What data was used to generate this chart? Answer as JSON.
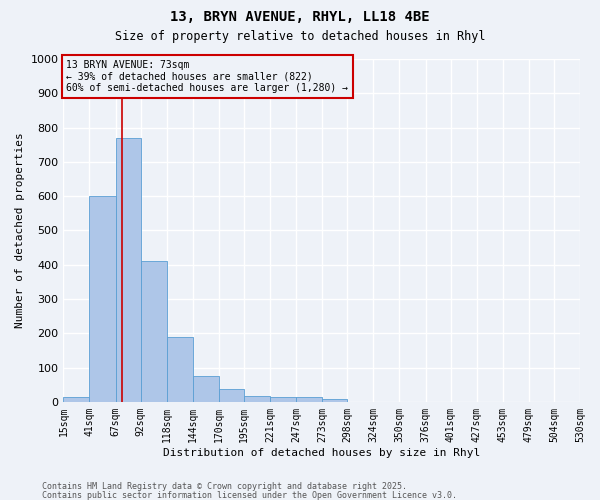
{
  "title1": "13, BRYN AVENUE, RHYL, LL18 4BE",
  "title2": "Size of property relative to detached houses in Rhyl",
  "xlabel": "Distribution of detached houses by size in Rhyl",
  "ylabel": "Number of detached properties",
  "bin_labels": [
    "15sqm",
    "41sqm",
    "67sqm",
    "92sqm",
    "118sqm",
    "144sqm",
    "170sqm",
    "195sqm",
    "221sqm",
    "247sqm",
    "273sqm",
    "298sqm",
    "324sqm",
    "350sqm",
    "376sqm",
    "401sqm",
    "427sqm",
    "453sqm",
    "479sqm",
    "504sqm",
    "530sqm"
  ],
  "bar_heights": [
    15,
    600,
    770,
    410,
    190,
    75,
    37,
    18,
    13,
    13,
    7,
    0,
    0,
    0,
    0,
    0,
    0,
    0,
    0,
    0,
    0
  ],
  "bar_color": "#aec6e8",
  "bar_edge_color": "#5a9fd4",
  "bg_color": "#eef2f8",
  "grid_color": "#ffffff",
  "red_line_x": 73,
  "bin_edges_numeric": [
    15,
    41,
    67,
    92,
    118,
    144,
    170,
    195,
    221,
    247,
    273,
    298,
    324,
    350,
    376,
    401,
    427,
    453,
    479,
    504,
    530
  ],
  "property_size": 73,
  "annotation_line1": "13 BRYN AVENUE: 73sqm",
  "annotation_line2": "← 39% of detached houses are smaller (822)",
  "annotation_line3": "60% of semi-detached houses are larger (1,280) →",
  "annotation_box_color": "#cc0000",
  "ylim": [
    0,
    1000
  ],
  "yticks": [
    0,
    100,
    200,
    300,
    400,
    500,
    600,
    700,
    800,
    900,
    1000
  ],
  "footnote1": "Contains HM Land Registry data © Crown copyright and database right 2025.",
  "footnote2": "Contains public sector information licensed under the Open Government Licence v3.0."
}
